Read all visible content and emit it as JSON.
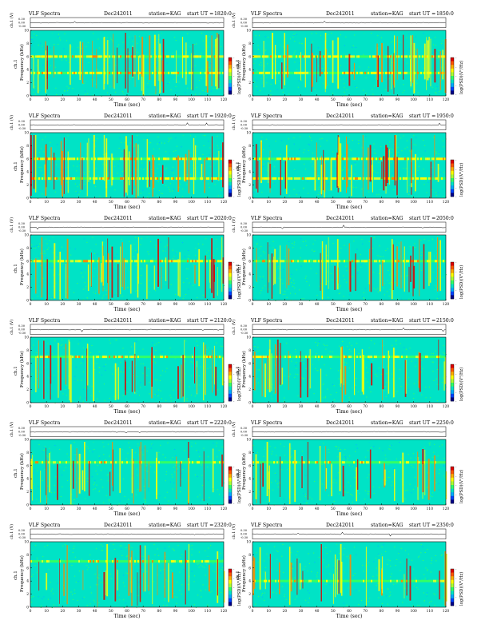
{
  "common": {
    "title_prefix": "VLF Spectra",
    "date": "Dec242011",
    "station": "station=KAG",
    "start_prefix": "start  UT =",
    "xlabel": "Time  (sec)",
    "ylabel_top": "ch.1",
    "ylabel": "Frequency  (kHz)",
    "trace_label": "ch.1 (V)",
    "trace_ticks": [
      "0.30",
      "0.00",
      "-0.30"
    ],
    "colorbar_label": "log(PSD)(V²/Hz)",
    "colorbar_ticks": [
      "-",
      "-",
      "-",
      "-",
      "-"
    ]
  },
  "chart_data": [
    {
      "type": "heatmap",
      "title": "VLF Spectra  Dec242011  station=KAG  start UT =1820:0",
      "start_ut": "1820:0",
      "x": [
        0,
        10,
        20,
        30,
        40,
        50,
        60,
        70,
        80,
        90,
        100,
        110,
        120
      ],
      "y": [
        0,
        2,
        4,
        6,
        8,
        10
      ],
      "xlim": [
        0,
        120
      ],
      "ylim": [
        0,
        10
      ],
      "trace_ylim": [
        -0.3,
        0.3
      ],
      "bands_khz": [
        6,
        3.5
      ],
      "activity": 0.6
    },
    {
      "type": "heatmap",
      "title": "VLF Spectra  Dec242011  station=KAG  start UT =1850:0",
      "start_ut": "1850:0",
      "x": [
        0,
        10,
        20,
        30,
        40,
        50,
        60,
        70,
        80,
        90,
        100,
        110,
        120
      ],
      "y": [
        0,
        2,
        4,
        6,
        8,
        10
      ],
      "xlim": [
        0,
        120
      ],
      "ylim": [
        0,
        10
      ],
      "trace_ylim": [
        -0.3,
        0.3
      ],
      "bands_khz": [
        6,
        3.5
      ],
      "activity": 0.55
    },
    {
      "type": "heatmap",
      "title": "VLF Spectra  Dec242011  station=KAG  start UT =1920:0",
      "start_ut": "1920:0",
      "x": [
        0,
        10,
        20,
        30,
        40,
        50,
        60,
        70,
        80,
        90,
        100,
        110,
        120
      ],
      "y": [
        0,
        2,
        4,
        6,
        8,
        10
      ],
      "xlim": [
        0,
        120
      ],
      "ylim": [
        0,
        10
      ],
      "trace_ylim": [
        -0.3,
        0.3
      ],
      "bands_khz": [
        6,
        3
      ],
      "activity": 0.6
    },
    {
      "type": "heatmap",
      "title": "VLF Spectra  Dec242011  station=KAG  start UT =1950:0",
      "start_ut": "1950:0",
      "x": [
        0,
        10,
        20,
        30,
        40,
        50,
        60,
        70,
        80,
        90,
        100,
        110,
        120
      ],
      "y": [
        0,
        2,
        4,
        6,
        8,
        10
      ],
      "xlim": [
        0,
        120
      ],
      "ylim": [
        0,
        10
      ],
      "trace_ylim": [
        -0.3,
        0.3
      ],
      "bands_khz": [
        6,
        3
      ],
      "activity": 0.65
    },
    {
      "type": "heatmap",
      "title": "VLF Spectra  Dec242011  station=KAG  start UT =2020:0",
      "start_ut": "2020:0",
      "x": [
        0,
        10,
        20,
        30,
        40,
        50,
        60,
        70,
        80,
        90,
        100,
        110,
        120
      ],
      "y": [
        0,
        2,
        4,
        6,
        8,
        10
      ],
      "xlim": [
        0,
        120
      ],
      "ylim": [
        0,
        10
      ],
      "trace_ylim": [
        -0.3,
        0.3
      ],
      "bands_khz": [
        6
      ],
      "activity": 0.55
    },
    {
      "type": "heatmap",
      "title": "VLF Spectra  Dec242011  station=KAG  start UT =2050:0",
      "start_ut": "2050:0",
      "x": [
        0,
        10,
        20,
        30,
        40,
        50,
        60,
        70,
        80,
        90,
        100,
        110,
        120
      ],
      "y": [
        0,
        2,
        4,
        6,
        8,
        10
      ],
      "xlim": [
        0,
        120
      ],
      "ylim": [
        0,
        10
      ],
      "trace_ylim": [
        -0.3,
        0.3
      ],
      "bands_khz": [
        6
      ],
      "activity": 0.45
    },
    {
      "type": "heatmap",
      "title": "VLF Spectra  Dec242011  station=KAG  start UT =2120:0",
      "start_ut": "2120:0",
      "x": [
        0,
        10,
        20,
        30,
        40,
        50,
        60,
        70,
        80,
        90,
        100,
        110,
        120
      ],
      "y": [
        0,
        2,
        4,
        6,
        8,
        10
      ],
      "xlim": [
        0,
        120
      ],
      "ylim": [
        0,
        10
      ],
      "trace_ylim": [
        -0.3,
        0.3
      ],
      "bands_khz": [
        7
      ],
      "activity": 0.4
    },
    {
      "type": "heatmap",
      "title": "VLF Spectra  Dec242011  station=KAG  start UT =2150:0",
      "start_ut": "2150:0",
      "x": [
        0,
        10,
        20,
        30,
        40,
        50,
        60,
        70,
        80,
        90,
        100,
        110,
        120
      ],
      "y": [
        0,
        2,
        4,
        6,
        8,
        10
      ],
      "xlim": [
        0,
        120
      ],
      "ylim": [
        0,
        10
      ],
      "trace_ylim": [
        -0.3,
        0.3
      ],
      "bands_khz": [
        7
      ],
      "activity": 0.4
    },
    {
      "type": "heatmap",
      "title": "VLF Spectra  Dec242011  station=KAG  start UT =2220:0",
      "start_ut": "2220:0",
      "x": [
        0,
        10,
        20,
        30,
        40,
        50,
        60,
        70,
        80,
        90,
        100,
        110,
        120
      ],
      "y": [
        0,
        2,
        4,
        6,
        8,
        10
      ],
      "xlim": [
        0,
        120
      ],
      "ylim": [
        0,
        10
      ],
      "trace_ylim": [
        -0.3,
        0.3
      ],
      "bands_khz": [
        6.5
      ],
      "activity": 0.3
    },
    {
      "type": "heatmap",
      "title": "VLF Spectra  Dec242011  station=KAG  start UT =2250:0",
      "start_ut": "2250:0",
      "x": [
        0,
        10,
        20,
        30,
        40,
        50,
        60,
        70,
        80,
        90,
        100,
        110,
        120
      ],
      "y": [
        0,
        2,
        4,
        6,
        8,
        10
      ],
      "xlim": [
        0,
        120
      ],
      "ylim": [
        0,
        10
      ],
      "trace_ylim": [
        -0.3,
        0.3
      ],
      "bands_khz": [
        6.5
      ],
      "activity": 0.3
    },
    {
      "type": "heatmap",
      "title": "VLF Spectra  Dec242011  station=KAG  start UT =2320:0",
      "start_ut": "2320:0",
      "x": [
        0,
        10,
        20,
        30,
        40,
        50,
        60,
        70,
        80,
        90,
        100,
        110,
        120
      ],
      "y": [
        0,
        2,
        4,
        6,
        8,
        10
      ],
      "xlim": [
        0,
        120
      ],
      "ylim": [
        0,
        10
      ],
      "trace_ylim": [
        -0.3,
        0.3
      ],
      "bands_khz": [
        7
      ],
      "activity": 0.25
    },
    {
      "type": "heatmap",
      "title": "VLF Spectra  Dec242011  station=KAG  start UT =2350:0",
      "start_ut": "2350:0",
      "x": [
        0,
        10,
        20,
        30,
        40,
        50,
        60,
        70,
        80,
        90,
        100,
        110,
        120
      ],
      "y": [
        0,
        2,
        4,
        6,
        8,
        10
      ],
      "xlim": [
        0,
        120
      ],
      "ylim": [
        0,
        10
      ],
      "trace_ylim": [
        -0.3,
        0.3
      ],
      "bands_khz": [
        4
      ],
      "activity": 0.25
    }
  ],
  "colors": {
    "background": "#00e3c6",
    "noise": "#33ff66",
    "medium": "#ffff00",
    "strong": "#ff8800",
    "peak": "#dd0000",
    "low": "#0066ff",
    "ink": "#000000"
  },
  "colorbar_colors": [
    "#dd0000",
    "#ff5500",
    "#ffaa00",
    "#ffff00",
    "#aaff33",
    "#33ff66",
    "#00e3c6",
    "#00aaff",
    "#0044ff",
    "#000088"
  ]
}
